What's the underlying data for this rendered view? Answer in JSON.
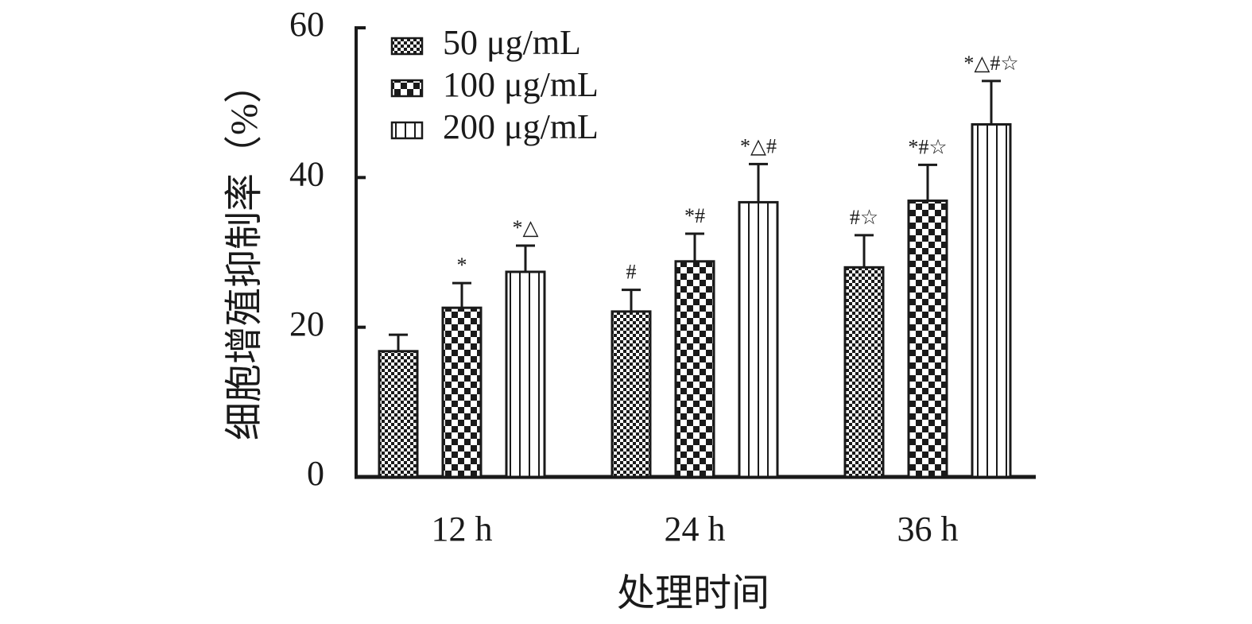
{
  "chart_data": {
    "type": "bar",
    "title": "",
    "xlabel": "处理时间",
    "ylabel": "细胞增殖抑制率（%）",
    "ylim": [
      0,
      60
    ],
    "yticks": [
      "0",
      "20",
      "40",
      "60"
    ],
    "grid": false,
    "legend_position": "top-left",
    "categories": [
      "12 h",
      "24 h",
      "36 h"
    ],
    "series": [
      {
        "name": "50 μg/mL",
        "pattern": "fine-checker",
        "values": [
          16.8,
          22.1,
          28.0
        ],
        "errors": [
          2.2,
          2.9,
          4.3
        ],
        "annotations": [
          "",
          "#",
          "#☆"
        ]
      },
      {
        "name": "100 μg/mL",
        "pattern": "coarse-checker",
        "values": [
          22.6,
          28.8,
          36.9
        ],
        "errors": [
          3.3,
          3.7,
          4.8
        ],
        "annotations": [
          "*",
          "*#",
          "*#☆"
        ]
      },
      {
        "name": "200 μg/mL",
        "pattern": "vertical-stripes",
        "values": [
          27.4,
          36.7,
          47.1
        ],
        "errors": [
          3.5,
          5.1,
          5.8
        ],
        "annotations": [
          "*△",
          "*△#",
          "*△#☆"
        ]
      }
    ],
    "colors": {
      "ink": "#1a1a1a",
      "fill": "#ffffff"
    }
  }
}
